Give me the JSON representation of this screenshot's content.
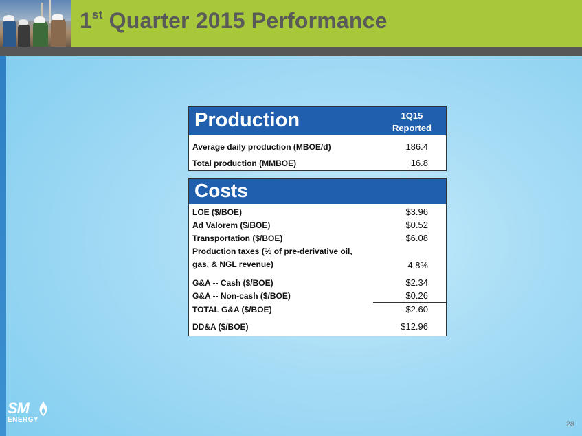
{
  "header": {
    "title_sup": "st",
    "title_num": "1",
    "title_rest": " Quarter 2015 Performance"
  },
  "production": {
    "title": "Production",
    "col_line1": "1Q15",
    "col_line2": "Reported",
    "rows": [
      {
        "label": "Average daily production (MBOE/d)",
        "value": "186.4"
      },
      {
        "label": "Total production (MMBOE)",
        "value": "16.8"
      }
    ]
  },
  "costs": {
    "title": "Costs",
    "rows": [
      {
        "label": "LOE ($/BOE)",
        "value": "$3.96"
      },
      {
        "label": "Ad Valorem ($/BOE)",
        "value": "$0.52"
      },
      {
        "label": "Transportation ($/BOE)",
        "value": "$6.08"
      },
      {
        "label_line1": "Production taxes (% of pre-derivative oil,",
        "label_line2": "gas, & NGL revenue)",
        "value": "4.8%"
      },
      {
        "label": "G&A -- Cash ($/BOE)",
        "value": "$2.34"
      },
      {
        "label": "G&A -- Non-cash ($/BOE)",
        "value": "$0.26"
      },
      {
        "label": "TOTAL G&A ($/BOE)",
        "value": "$2.60"
      },
      {
        "label": "DD&A ($/BOE)",
        "value": "$12.96"
      }
    ]
  },
  "logo": {
    "line1": "SM",
    "line2": "ENERGY",
    "icon": "flame-icon"
  },
  "page_number": "28"
}
